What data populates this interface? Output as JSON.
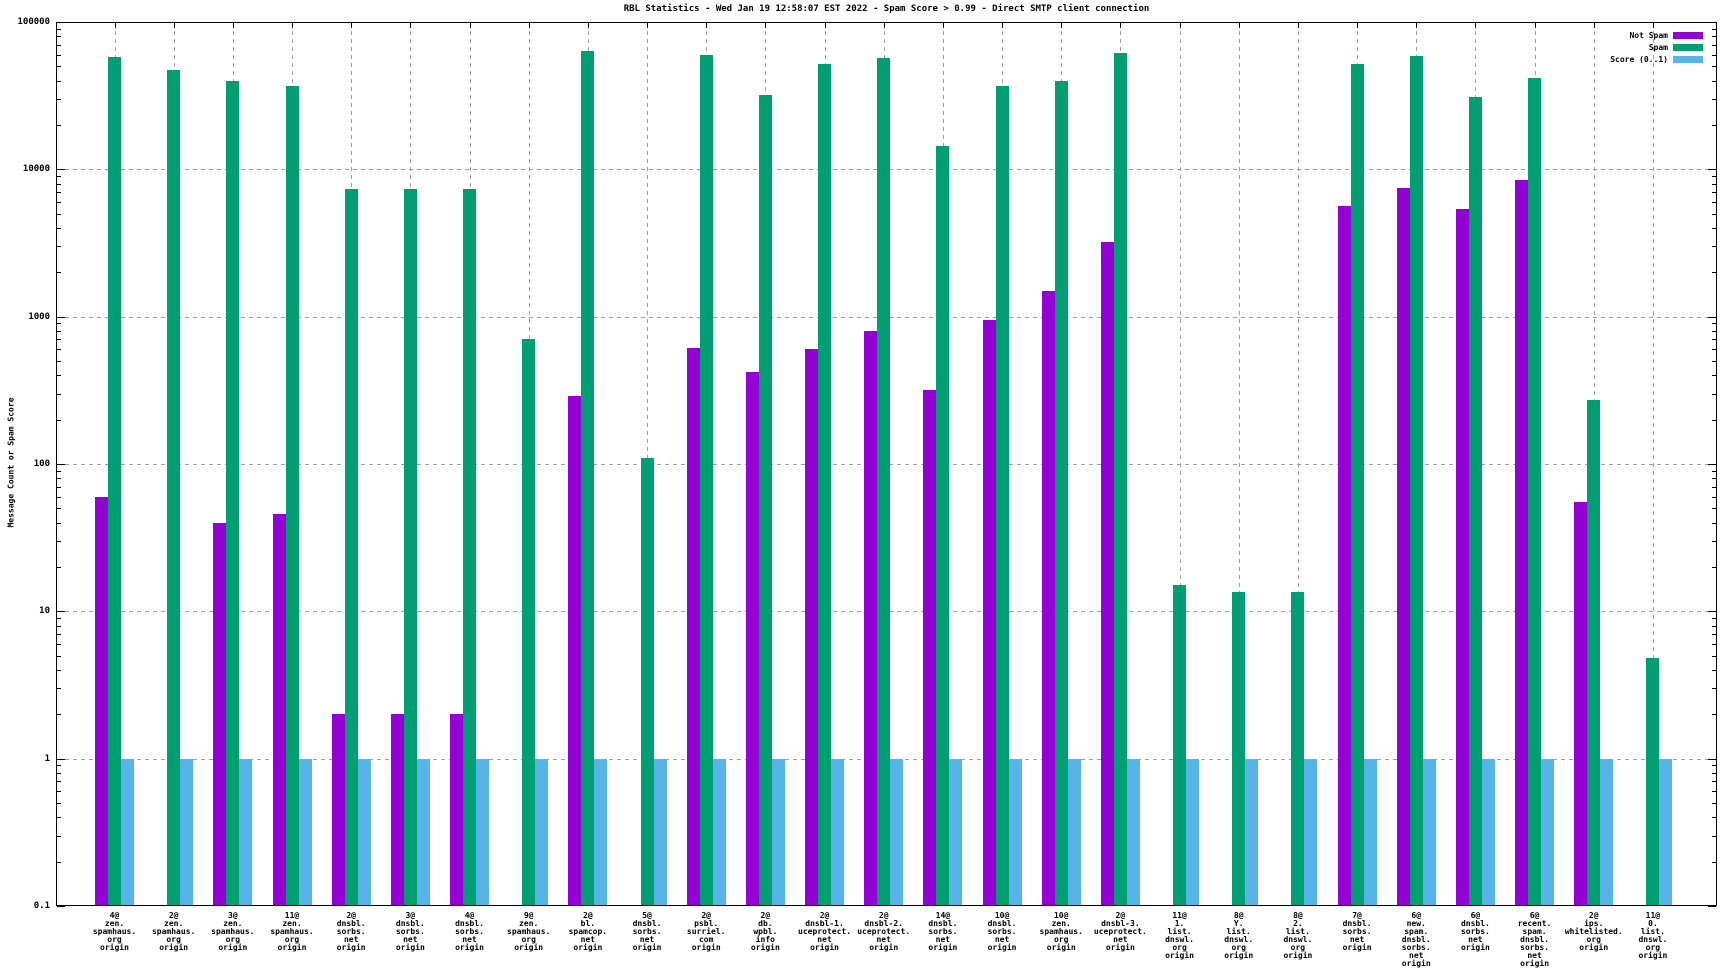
{
  "chart_data": {
    "type": "bar",
    "title": "RBL Statistics - Wed Jan 19 12:58:07 EST 2022 - Spam Score > 0.99 - Direct SMTP client connection",
    "ylabel": "Message Count or Spam Score",
    "y_scale": "log",
    "ylim": [
      0.1,
      100000
    ],
    "ytick_labels": [
      "100000",
      "10000",
      "1000",
      "100",
      "10",
      "1",
      "0.1"
    ],
    "grid": true,
    "legend_position": "top-right-inside",
    "colors": {
      "not_spam": "#9400d3",
      "spam": "#009e73",
      "score": "#56b4e9"
    },
    "legend": [
      "Not Spam",
      "Spam",
      "Score (0..1)"
    ],
    "categories": [
      [
        "4@",
        "zen.",
        "spamhaus.",
        "org",
        "origin"
      ],
      [
        "2@",
        "zen.",
        "spamhaus.",
        "org",
        "origin"
      ],
      [
        "3@",
        "zen.",
        "spamhaus.",
        "org",
        "origin"
      ],
      [
        "11@",
        "zen.",
        "spamhaus.",
        "org",
        "origin"
      ],
      [
        "2@",
        "dnsbl.",
        "sorbs.",
        "net",
        "origin"
      ],
      [
        "3@",
        "dnsbl.",
        "sorbs.",
        "net",
        "origin"
      ],
      [
        "4@",
        "dnsbl.",
        "sorbs.",
        "net",
        "origin"
      ],
      [
        "9@",
        "zen.",
        "spamhaus.",
        "org",
        "origin"
      ],
      [
        "2@",
        "bl.",
        "spamcop.",
        "net",
        "origin"
      ],
      [
        "5@",
        "dnsbl.",
        "sorbs.",
        "net",
        "origin"
      ],
      [
        "2@",
        "psbl.",
        "surriel.",
        "com",
        "origin"
      ],
      [
        "2@",
        "db.",
        "wpbl.",
        "info",
        "origin"
      ],
      [
        "2@",
        "dnsbl-1.",
        "uceprotect.",
        "net",
        "origin"
      ],
      [
        "2@",
        "dnsbl-2.",
        "uceprotect.",
        "net",
        "origin"
      ],
      [
        "14@",
        "dnsbl.",
        "sorbs.",
        "net",
        "origin"
      ],
      [
        "10@",
        "dnsbl.",
        "sorbs.",
        "net",
        "origin"
      ],
      [
        "10@",
        "zen.",
        "spamhaus.",
        "org",
        "origin"
      ],
      [
        "2@",
        "dnsbl-3.",
        "uceprotect.",
        "net",
        "origin"
      ],
      [
        "11@",
        "1.",
        "list.",
        "dnswl.",
        "org",
        "origin"
      ],
      [
        "8@",
        "Y.",
        "list.",
        "dnswl.",
        "org",
        "origin"
      ],
      [
        "8@",
        "2.",
        "list.",
        "dnswl.",
        "org",
        "origin"
      ],
      [
        "7@",
        "dnsbl.",
        "sorbs.",
        "net",
        "origin"
      ],
      [
        "6@",
        "new.",
        "spam.",
        "dnsbl.",
        "sorbs.",
        "net",
        "origin"
      ],
      [
        "6@",
        "dnsbl.",
        "sorbs.",
        "net",
        "origin"
      ],
      [
        "6@",
        "recent.",
        "spam.",
        "dnsbl.",
        "sorbs.",
        "net",
        "origin"
      ],
      [
        "2@",
        "ips.",
        "whitelisted.",
        "org",
        "origin"
      ],
      [
        "11@",
        "0.",
        "list.",
        "dnswl.",
        "org",
        "origin"
      ]
    ],
    "series": [
      {
        "name": "Not Spam",
        "color_key": "not_spam",
        "values": [
          60,
          null,
          40,
          46,
          2,
          2,
          2,
          null,
          290,
          null,
          610,
          420,
          600,
          800,
          320,
          950,
          1500,
          3200,
          null,
          null,
          null,
          5600,
          7500,
          5400,
          8500,
          55,
          null
        ]
      },
      {
        "name": "Spam",
        "color_key": "spam",
        "values": [
          58000,
          47000,
          40000,
          37000,
          7400,
          7400,
          7400,
          700,
          64000,
          110,
          60000,
          32000,
          52000,
          57000,
          14500,
          37000,
          40000,
          62000,
          15,
          13.5,
          13.5,
          52000,
          59000,
          31000,
          42000,
          270,
          4.8
        ]
      },
      {
        "name": "Score (0..1)",
        "color_key": "score",
        "values": [
          1,
          1,
          1,
          1,
          1,
          1,
          1,
          1,
          1,
          1,
          1,
          1,
          1,
          1,
          1,
          1,
          1,
          1,
          1,
          1,
          1,
          1,
          1,
          1,
          1,
          1,
          1
        ]
      }
    ]
  }
}
